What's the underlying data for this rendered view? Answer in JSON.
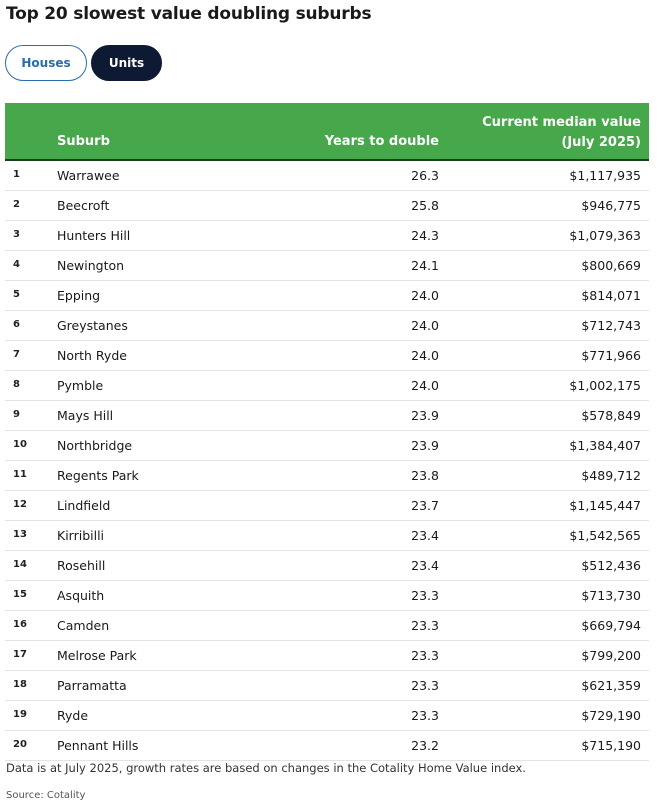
{
  "title": "Top 20 slowest value doubling suburbs",
  "toggle": {
    "houses": "Houses",
    "units": "Units",
    "selected": "Units"
  },
  "colors": {
    "header_bg": "#46a84a",
    "selected_toggle_bg": "#0e1a33",
    "toggle_outline": "#2a6cad"
  },
  "table": {
    "headers": {
      "rank": "",
      "suburb": "Suburb",
      "years": "Years to double",
      "value_line1": "Current median value",
      "value_line2": "(July 2025)"
    },
    "rows": [
      {
        "rank": "1",
        "suburb": "Warrawee",
        "years": "26.3",
        "value": "$1,117,935"
      },
      {
        "rank": "2",
        "suburb": "Beecroft",
        "years": "25.8",
        "value": "$946,775"
      },
      {
        "rank": "3",
        "suburb": "Hunters Hill",
        "years": "24.3",
        "value": "$1,079,363"
      },
      {
        "rank": "4",
        "suburb": "Newington",
        "years": "24.1",
        "value": "$800,669"
      },
      {
        "rank": "5",
        "suburb": "Epping",
        "years": "24.0",
        "value": "$814,071"
      },
      {
        "rank": "6",
        "suburb": "Greystanes",
        "years": "24.0",
        "value": "$712,743"
      },
      {
        "rank": "7",
        "suburb": "North Ryde",
        "years": "24.0",
        "value": "$771,966"
      },
      {
        "rank": "8",
        "suburb": "Pymble",
        "years": "24.0",
        "value": "$1,002,175"
      },
      {
        "rank": "9",
        "suburb": "Mays Hill",
        "years": "23.9",
        "value": "$578,849"
      },
      {
        "rank": "10",
        "suburb": "Northbridge",
        "years": "23.9",
        "value": "$1,384,407"
      },
      {
        "rank": "11",
        "suburb": "Regents Park",
        "years": "23.8",
        "value": "$489,712"
      },
      {
        "rank": "12",
        "suburb": "Lindfield",
        "years": "23.7",
        "value": "$1,145,447"
      },
      {
        "rank": "13",
        "suburb": "Kirribilli",
        "years": "23.4",
        "value": "$1,542,565"
      },
      {
        "rank": "14",
        "suburb": "Rosehill",
        "years": "23.4",
        "value": "$512,436"
      },
      {
        "rank": "15",
        "suburb": "Asquith",
        "years": "23.3",
        "value": "$713,730"
      },
      {
        "rank": "16",
        "suburb": "Camden",
        "years": "23.3",
        "value": "$669,794"
      },
      {
        "rank": "17",
        "suburb": "Melrose Park",
        "years": "23.3",
        "value": "$799,200"
      },
      {
        "rank": "18",
        "suburb": "Parramatta",
        "years": "23.3",
        "value": "$621,359"
      },
      {
        "rank": "19",
        "suburb": "Ryde",
        "years": "23.3",
        "value": "$729,190"
      },
      {
        "rank": "20",
        "suburb": "Pennant Hills",
        "years": "23.2",
        "value": "$715,190"
      }
    ]
  },
  "note": "Data is at July 2025, growth rates are based on changes in the Cotality Home Value index.",
  "source": "Source: Cotality"
}
